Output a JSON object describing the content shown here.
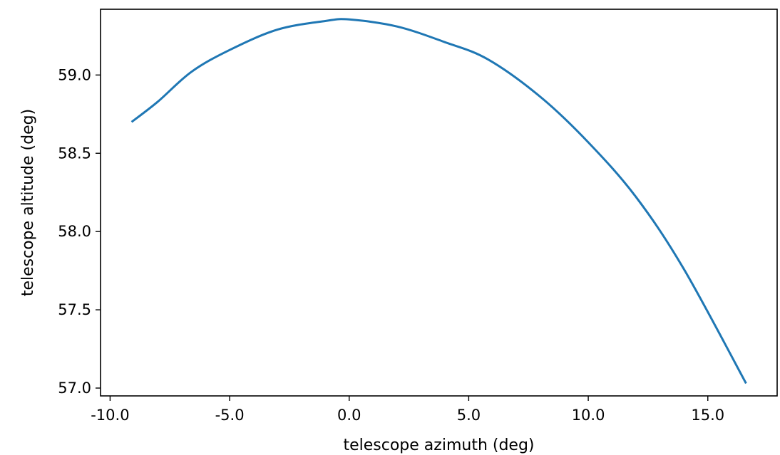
{
  "chart_data": {
    "type": "line",
    "title": "",
    "xlabel": "telescope azimuth (deg)",
    "ylabel": "telescope altitude (deg)",
    "xlim": [
      -10.4,
      17.9
    ],
    "ylim": [
      56.95,
      59.42
    ],
    "grid": false,
    "x_ticks": [
      -10.0,
      -5.0,
      0.0,
      5.0,
      10.0,
      15.0
    ],
    "x_tick_labels": [
      "-10.0",
      "-5.0",
      "0.0",
      "5.0",
      "10.0",
      "15.0"
    ],
    "y_ticks": [
      57.0,
      57.5,
      58.0,
      58.5,
      59.0
    ],
    "y_tick_labels": [
      "57.0",
      "57.5",
      "58.0",
      "58.5",
      "59.0"
    ],
    "series_color": "#1f77b4",
    "series": [
      {
        "x": [
          -9.1,
          -8.0,
          -6.6,
          -5.0,
          -3.0,
          -1.0,
          0.0,
          2.0,
          4.0,
          5.8,
          8.0,
          10.0,
          12.0,
          14.0,
          16.6
        ],
        "y": [
          58.7,
          58.83,
          59.02,
          59.16,
          59.29,
          59.345,
          59.355,
          59.31,
          59.21,
          59.1,
          58.86,
          58.57,
          58.22,
          57.76,
          57.03
        ]
      }
    ]
  }
}
